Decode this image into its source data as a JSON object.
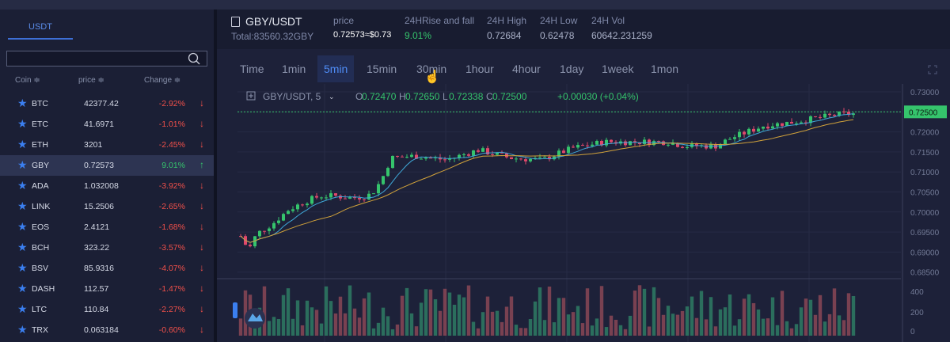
{
  "left_panel": {
    "tab_label": "USDT",
    "search": {
      "value": ""
    },
    "columns": {
      "coin": "Coin ≑",
      "price": "price ≑",
      "change": "Change ≑"
    },
    "coins": [
      {
        "coin": "BTC",
        "price": "42377.42",
        "change": "-2.92%",
        "dir": "neg"
      },
      {
        "coin": "ETC",
        "price": "41.6971",
        "change": "-1.01%",
        "dir": "neg"
      },
      {
        "coin": "ETH",
        "price": "3201",
        "change": "-2.45%",
        "dir": "neg"
      },
      {
        "coin": "GBY",
        "price": "0.72573",
        "change": "9.01%",
        "dir": "pos",
        "active": true
      },
      {
        "coin": "ADA",
        "price": "1.032008",
        "change": "-3.92%",
        "dir": "neg"
      },
      {
        "coin": "LINK",
        "price": "15.2506",
        "change": "-2.65%",
        "dir": "neg"
      },
      {
        "coin": "EOS",
        "price": "2.4121",
        "change": "-1.68%",
        "dir": "neg"
      },
      {
        "coin": "BCH",
        "price": "323.22",
        "change": "-3.57%",
        "dir": "neg"
      },
      {
        "coin": "BSV",
        "price": "85.9316",
        "change": "-4.07%",
        "dir": "neg"
      },
      {
        "coin": "DASH",
        "price": "112.57",
        "change": "-1.47%",
        "dir": "neg"
      },
      {
        "coin": "LTC",
        "price": "110.84",
        "change": "-2.27%",
        "dir": "neg"
      },
      {
        "coin": "TRX",
        "price": "0.063184",
        "change": "-0.60%",
        "dir": "neg"
      }
    ]
  },
  "header": {
    "pair": "GBY/USDT",
    "total": "Total:83560.32GBY",
    "stats": [
      {
        "label": "price",
        "value": "0.72573≈$0.73",
        "color": "#ffffff"
      },
      {
        "label": "24HRise and fall",
        "value": "9.01%",
        "color": "#35c46c"
      },
      {
        "label": "24H High",
        "value": "0.72684",
        "color": "#aab1c8"
      },
      {
        "label": "24H Low",
        "value": "0.62478",
        "color": "#aab1c8"
      },
      {
        "label": "24H Vol",
        "value": "60642.231259",
        "color": "#aab1c8"
      }
    ]
  },
  "chart": {
    "intervals": [
      "Time",
      "1min",
      "5min",
      "15min",
      "30min",
      "1hour",
      "4hour",
      "1day",
      "1week",
      "1mon"
    ],
    "active_interval": "5min",
    "legend": {
      "symbol": "GBY/USDT, 5",
      "o_label": "O",
      "o": "0.72470",
      "h_label": "H",
      "h": "0.72650",
      "l_label": "L",
      "l": "0.72338",
      "c_label": "C",
      "c": "0.72500",
      "change": "+0.00030 (+0.04%)"
    },
    "current_price": "0.72500",
    "price_axis": [
      "0.73000",
      "0.72500",
      "0.72000",
      "0.71500",
      "0.71000",
      "0.70500",
      "0.70000",
      "0.69500",
      "0.69000",
      "0.68500"
    ],
    "volume_axis": [
      "400",
      "200",
      "0"
    ],
    "colors": {
      "up": "#35c46c",
      "down": "#e0486b",
      "ma1": "#3fa8d8",
      "ma2": "#d1a23a",
      "accent": "#4f8cf5"
    }
  }
}
